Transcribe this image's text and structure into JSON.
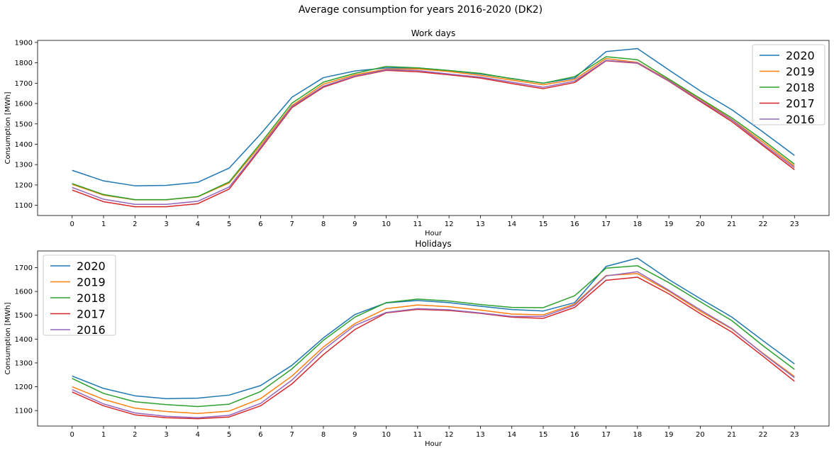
{
  "figure": {
    "title": "Average consumption for years 2016-2020 (DK2)"
  },
  "colors": {
    "2020": "#1f77b4",
    "2019": "#ff7f0e",
    "2018": "#2ca02c",
    "2017": "#d62728",
    "2016": "#9467bd"
  },
  "chart_data": [
    {
      "type": "line",
      "title": "Work days",
      "xlabel": "Hour",
      "ylabel": "Consumption [MWh]",
      "x": [
        0,
        1,
        2,
        3,
        4,
        5,
        6,
        7,
        8,
        9,
        10,
        11,
        12,
        13,
        14,
        15,
        16,
        17,
        18,
        19,
        20,
        21,
        22,
        23
      ],
      "xlim": [
        -1.1,
        24.1
      ],
      "ylim": [
        1050,
        1910
      ],
      "yticks": [
        1100,
        1200,
        1300,
        1400,
        1500,
        1600,
        1700,
        1800,
        1900
      ],
      "legend_position": "upper-right",
      "series": [
        {
          "name": "2020",
          "color": "#1f77b4",
          "values": [
            1272,
            1220,
            1196,
            1198,
            1213,
            1283,
            1450,
            1631,
            1727,
            1760,
            1775,
            1775,
            1762,
            1745,
            1723,
            1700,
            1725,
            1855,
            1870,
            1765,
            1662,
            1570,
            1460,
            1345
          ]
        },
        {
          "name": "2019",
          "color": "#ff7f0e",
          "values": [
            1203,
            1150,
            1127,
            1127,
            1142,
            1210,
            1395,
            1590,
            1695,
            1741,
            1769,
            1770,
            1757,
            1738,
            1715,
            1692,
            1718,
            1821,
            1802,
            1715,
            1622,
            1522,
            1410,
            1292
          ]
        },
        {
          "name": "2018",
          "color": "#2ca02c",
          "values": [
            1207,
            1153,
            1128,
            1128,
            1143,
            1215,
            1405,
            1602,
            1705,
            1748,
            1782,
            1775,
            1762,
            1748,
            1722,
            1700,
            1732,
            1830,
            1815,
            1720,
            1625,
            1530,
            1420,
            1302
          ]
        },
        {
          "name": "2017",
          "color": "#d62728",
          "values": [
            1175,
            1118,
            1093,
            1093,
            1108,
            1180,
            1378,
            1580,
            1680,
            1732,
            1763,
            1756,
            1741,
            1725,
            1698,
            1673,
            1703,
            1810,
            1798,
            1710,
            1610,
            1512,
            1393,
            1275
          ]
        },
        {
          "name": "2016",
          "color": "#9467bd",
          "values": [
            1188,
            1130,
            1105,
            1105,
            1120,
            1190,
            1385,
            1585,
            1685,
            1735,
            1766,
            1762,
            1745,
            1730,
            1705,
            1680,
            1710,
            1812,
            1800,
            1712,
            1615,
            1520,
            1400,
            1285
          ]
        }
      ]
    },
    {
      "type": "line",
      "title": "Holidays",
      "xlabel": "Hour",
      "ylabel": "Consumption [MWh]",
      "x": [
        0,
        1,
        2,
        3,
        4,
        5,
        6,
        7,
        8,
        9,
        10,
        11,
        12,
        13,
        14,
        15,
        16,
        17,
        18,
        19,
        20,
        21,
        22,
        23
      ],
      "xlim": [
        -1.1,
        24.1
      ],
      "ylim": [
        1035,
        1770
      ],
      "yticks": [
        1100,
        1200,
        1300,
        1400,
        1500,
        1600,
        1700
      ],
      "legend_position": "upper-left",
      "series": [
        {
          "name": "2020",
          "color": "#1f77b4",
          "values": [
            1245,
            1193,
            1162,
            1150,
            1152,
            1165,
            1205,
            1290,
            1405,
            1503,
            1552,
            1562,
            1553,
            1538,
            1524,
            1518,
            1553,
            1705,
            1740,
            1650,
            1570,
            1493,
            1393,
            1296
          ]
        },
        {
          "name": "2019",
          "color": "#ff7f0e",
          "values": [
            1200,
            1147,
            1110,
            1096,
            1088,
            1098,
            1150,
            1245,
            1367,
            1465,
            1528,
            1543,
            1536,
            1522,
            1505,
            1502,
            1547,
            1667,
            1675,
            1601,
            1517,
            1443,
            1340,
            1243
          ]
        },
        {
          "name": "2018",
          "color": "#2ca02c",
          "values": [
            1235,
            1172,
            1137,
            1125,
            1117,
            1127,
            1180,
            1275,
            1395,
            1492,
            1553,
            1568,
            1560,
            1545,
            1533,
            1532,
            1582,
            1698,
            1708,
            1637,
            1557,
            1478,
            1372,
            1273
          ]
        },
        {
          "name": "2017",
          "color": "#d62728",
          "values": [
            1178,
            1120,
            1082,
            1070,
            1066,
            1073,
            1120,
            1212,
            1335,
            1440,
            1510,
            1525,
            1520,
            1508,
            1492,
            1487,
            1533,
            1647,
            1660,
            1590,
            1507,
            1430,
            1328,
            1223
          ]
        },
        {
          "name": "2016",
          "color": "#9467bd",
          "values": [
            1188,
            1128,
            1090,
            1076,
            1070,
            1080,
            1130,
            1228,
            1355,
            1457,
            1512,
            1528,
            1523,
            1510,
            1495,
            1495,
            1542,
            1665,
            1683,
            1605,
            1523,
            1445,
            1338,
            1238
          ]
        }
      ]
    }
  ]
}
